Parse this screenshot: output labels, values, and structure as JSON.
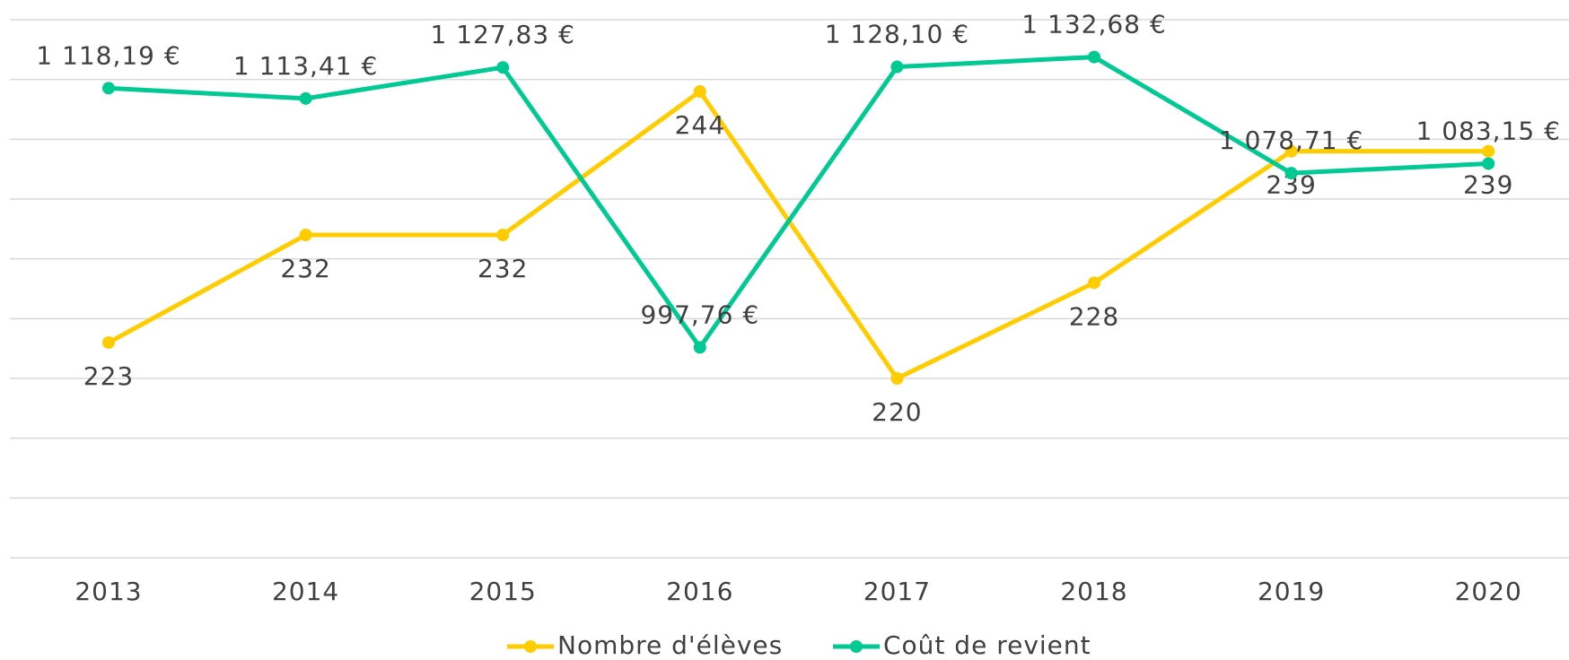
{
  "chart_data": {
    "type": "line",
    "categories": [
      "2013",
      "2014",
      "2015",
      "2016",
      "2017",
      "2018",
      "2019",
      "2020"
    ],
    "series": [
      {
        "name": "Nombre d'élèves",
        "color": "#ffcc00",
        "values": [
          223,
          232,
          232,
          244,
          220,
          228,
          239,
          239
        ]
      },
      {
        "name": "Coût de revient",
        "color": "#00c994",
        "axis": "y2",
        "values": [
          1118.19,
          1113.41,
          1127.83,
          997.76,
          1128.1,
          1132.68,
          1078.71,
          1083.15
        ],
        "value_labels": [
          "1 118,19 €",
          "1 113,41 €",
          "1 127,83 €",
          "997,76 €",
          "1 128,10 €",
          "1 132,68 €",
          "1 078,71 €",
          "1 083,15 €"
        ]
      }
    ],
    "ylim": [
      205,
      250
    ],
    "y2lim": [
      900,
      1150
    ],
    "grid": true
  }
}
